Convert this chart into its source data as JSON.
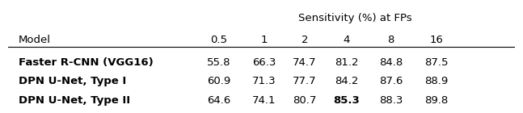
{
  "title": "Sensitivity (%) at FPs",
  "col_headers": [
    "0.5",
    "1",
    "2",
    "4",
    "8",
    "16"
  ],
  "row_label_header": "Model",
  "rows": [
    {
      "label": "Faster R-CNN (VGG16)",
      "bold_label": true,
      "values": [
        "55.8",
        "66.3",
        "74.7",
        "81.2",
        "84.8",
        "87.5"
      ],
      "bold_values": [
        false,
        false,
        false,
        false,
        false,
        false
      ]
    },
    {
      "label": "DPN U-Net, Type I",
      "bold_label": true,
      "values": [
        "60.9",
        "71.3",
        "77.7",
        "84.2",
        "87.6",
        "88.9"
      ],
      "bold_values": [
        false,
        false,
        false,
        false,
        false,
        false
      ]
    },
    {
      "label": "DPN U-Net, Type II",
      "bold_label": true,
      "values": [
        "64.6",
        "74.1",
        "80.7",
        "85.3",
        "88.3",
        "89.8"
      ],
      "bold_values": [
        false,
        false,
        false,
        true,
        false,
        false
      ]
    }
  ],
  "font_size": 9.5,
  "fig_width": 6.4,
  "fig_height": 1.19
}
